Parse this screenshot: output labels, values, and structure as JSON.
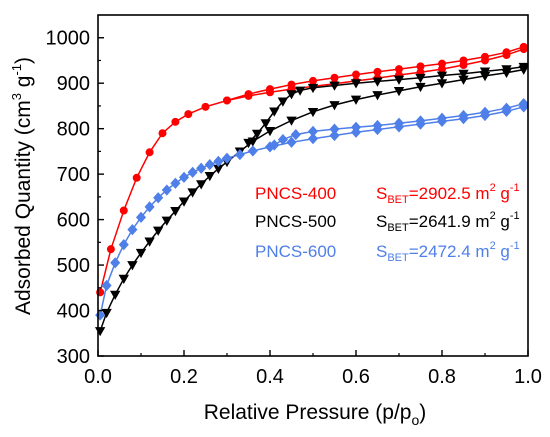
{
  "chart_data": {
    "type": "line",
    "xlabel": {
      "main": "Relative Pressure (p/p",
      "sub": "o",
      "tail": ")"
    },
    "ylabel": {
      "main": "Adsorbed Quantity (cm",
      "sup1": "3",
      "mid": " g",
      "sup2": "-1",
      "tail": ")"
    },
    "xlim": [
      0.0,
      1.0
    ],
    "ylim": [
      300,
      1050
    ],
    "xticks": [
      0.0,
      0.2,
      0.4,
      0.6,
      0.8,
      1.0
    ],
    "xtick_labels": [
      "0.0",
      "0.2",
      "0.4",
      "0.6",
      "0.8",
      "1.0"
    ],
    "yticks": [
      300,
      400,
      500,
      600,
      700,
      800,
      900,
      1000
    ],
    "ytick_labels": [
      "300",
      "400",
      "500",
      "600",
      "700",
      "800",
      "900",
      "1000"
    ],
    "grid": false,
    "series": [
      {
        "name": "PNCS-400",
        "color": "#ff0000",
        "marker": "circle",
        "sbet": {
          "label_main": "S",
          "label_sub": "BET",
          "value": "=2902.5 m",
          "sup": "2",
          "unit": " g",
          "sup2": "-1"
        },
        "adsorption": {
          "x": [
            0.005,
            0.03,
            0.06,
            0.09,
            0.12,
            0.15,
            0.18,
            0.21,
            0.25,
            0.3,
            0.35,
            0.4,
            0.45,
            0.5,
            0.55,
            0.6,
            0.65,
            0.7,
            0.75,
            0.8,
            0.85,
            0.9,
            0.95,
            0.99
          ],
          "y": [
            440,
            535,
            620,
            692,
            748,
            790,
            815,
            832,
            848,
            862,
            872,
            880,
            887,
            893,
            899,
            905,
            911,
            918,
            924,
            931,
            940,
            950,
            962,
            975
          ]
        },
        "desorption": {
          "x": [
            0.99,
            0.95,
            0.9,
            0.85,
            0.8,
            0.75,
            0.7,
            0.65,
            0.6,
            0.55,
            0.5,
            0.45,
            0.4,
            0.35,
            0.3
          ],
          "y": [
            980,
            968,
            958,
            950,
            943,
            937,
            931,
            925,
            919,
            912,
            905,
            897,
            887,
            876,
            862
          ]
        }
      },
      {
        "name": "PNCS-500",
        "color": "#000000",
        "marker": "triangle-down",
        "sbet": {
          "label_main": "S",
          "label_sub": "BET",
          "value": "=2641.9 m",
          "sup": "2",
          "unit": " g",
          "sup2": "-1"
        },
        "adsorption": {
          "x": [
            0.005,
            0.02,
            0.04,
            0.06,
            0.08,
            0.1,
            0.12,
            0.14,
            0.16,
            0.18,
            0.2,
            0.22,
            0.24,
            0.26,
            0.28,
            0.3,
            0.33,
            0.36,
            0.4,
            0.45,
            0.5,
            0.55,
            0.6,
            0.65,
            0.7,
            0.75,
            0.8,
            0.85,
            0.9,
            0.95,
            0.99
          ],
          "y": [
            355,
            395,
            435,
            470,
            500,
            527,
            552,
            576,
            598,
            619,
            640,
            660,
            678,
            696,
            712,
            727,
            750,
            772,
            795,
            818,
            837,
            852,
            864,
            874,
            883,
            892,
            900,
            908,
            916,
            923,
            930
          ]
        },
        "desorption": {
          "x": [
            0.99,
            0.95,
            0.9,
            0.85,
            0.8,
            0.75,
            0.7,
            0.65,
            0.6,
            0.55,
            0.5,
            0.47,
            0.45,
            0.43,
            0.41,
            0.39,
            0.37,
            0.35
          ],
          "y": [
            936,
            931,
            926,
            921,
            917,
            912,
            908,
            904,
            900,
            895,
            890,
            884,
            876,
            860,
            838,
            812,
            789,
            769
          ]
        }
      },
      {
        "name": "PNCS-600",
        "color": "#4f7fe8",
        "marker": "diamond",
        "sbet": {
          "label_main": "S",
          "label_sub": "BET",
          "value": "=2472.4 m",
          "sup": "2",
          "unit": " g",
          "sup2": "-1"
        },
        "adsorption": {
          "x": [
            0.005,
            0.02,
            0.04,
            0.06,
            0.08,
            0.1,
            0.12,
            0.14,
            0.16,
            0.18,
            0.2,
            0.22,
            0.24,
            0.26,
            0.28,
            0.3,
            0.33,
            0.36,
            0.4,
            0.45,
            0.5,
            0.55,
            0.6,
            0.65,
            0.7,
            0.75,
            0.8,
            0.85,
            0.9,
            0.95,
            0.99
          ],
          "y": [
            390,
            455,
            505,
            545,
            578,
            605,
            628,
            648,
            665,
            680,
            693,
            704,
            713,
            721,
            728,
            735,
            743,
            751,
            760,
            770,
            778,
            785,
            792,
            798,
            804,
            810,
            816,
            822,
            829,
            838,
            848
          ]
        },
        "desorption": {
          "x": [
            0.99,
            0.95,
            0.9,
            0.85,
            0.8,
            0.75,
            0.7,
            0.65,
            0.6,
            0.55,
            0.5,
            0.46,
            0.43,
            0.41
          ],
          "y": [
            855,
            845,
            836,
            829,
            823,
            817,
            812,
            807,
            803,
            799,
            794,
            787,
            776,
            764
          ]
        }
      }
    ]
  }
}
